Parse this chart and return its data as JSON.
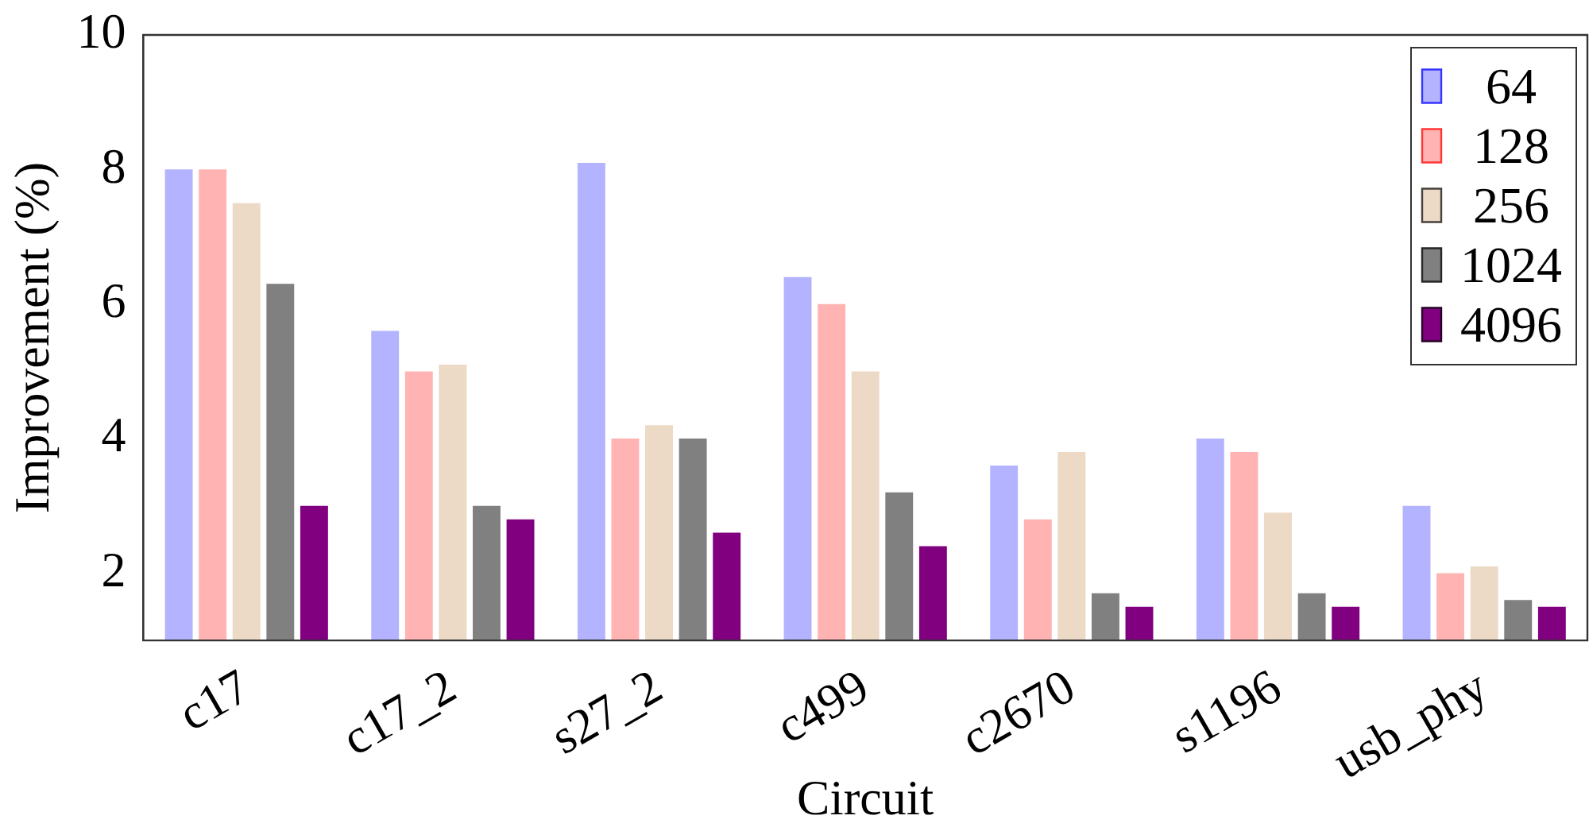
{
  "chart_data": {
    "type": "bar",
    "xlabel": "Circuit",
    "ylabel": "Improvement (%)",
    "categories": [
      "c17",
      "c17_2",
      "s27_2",
      "c499",
      "c2670",
      "s1196",
      "usb_phy"
    ],
    "series": [
      {
        "name": "64",
        "color": "#b3b3ff",
        "values": [
          8,
          5.6,
          8.1,
          6.4,
          3.6,
          4,
          3
        ]
      },
      {
        "name": "128",
        "color": "#ffb3b3",
        "values": [
          8,
          5,
          4,
          6,
          2.8,
          3.8,
          2
        ]
      },
      {
        "name": "256",
        "color": "#ecd9c6",
        "values": [
          7.5,
          5.1,
          4.2,
          5,
          3.8,
          2.9,
          2.1
        ]
      },
      {
        "name": "1024",
        "color": "#808080",
        "values": [
          6.3,
          3,
          4,
          3.2,
          1.7,
          1.7,
          1.6
        ]
      },
      {
        "name": "4096",
        "color": "#800080",
        "values": [
          3,
          2.8,
          2.6,
          2.4,
          1.5,
          1.5,
          1.5
        ]
      }
    ],
    "ylim": [
      1,
      10
    ],
    "yticks": [
      2,
      4,
      6,
      8,
      10
    ],
    "legend": "top right"
  }
}
